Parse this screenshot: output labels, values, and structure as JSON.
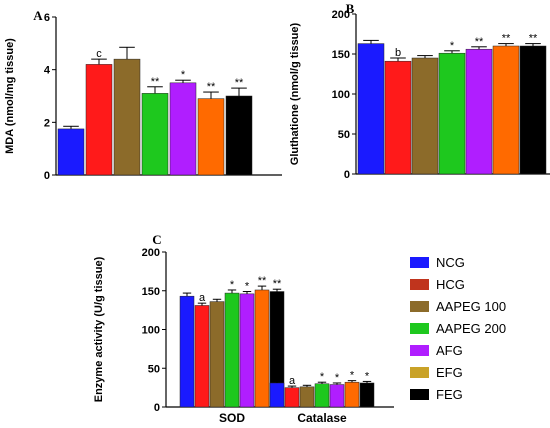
{
  "groups": [
    "NCG",
    "HCG",
    "AAPEG 100",
    "AAPEG 200",
    "AFG",
    "EFG",
    "FEG"
  ],
  "colors": {
    "NCG": "#1a1aff",
    "HCG": "#ff1a1a",
    "AAPEG 100": "#8c6b2a",
    "AAPEG 200": "#1ec81e",
    "AFG": "#b01eff",
    "EFG": "#ff6a00",
    "FEG": "#000000"
  },
  "legend": {
    "items": [
      {
        "label": "NCG",
        "color": "#1a1aff"
      },
      {
        "label": "HCG",
        "color": "#c0341d"
      },
      {
        "label": "AAPEG 100",
        "color": "#8c6b2a"
      },
      {
        "label": "AAPEG 200",
        "color": "#1ec81e"
      },
      {
        "label": "AFG",
        "color": "#b01eff"
      },
      {
        "label": "EFG",
        "color": "#c9a227"
      },
      {
        "label": "FEG",
        "color": "#000000"
      }
    ]
  },
  "chart_data": [
    {
      "panel": "A",
      "type": "bar",
      "title": "",
      "xlabel": "",
      "ylabel": "MDA (nmol/mg tissue)",
      "ylim": [
        0,
        6
      ],
      "yticks": [
        0,
        2,
        4,
        6
      ],
      "categories": [
        "NCG",
        "HCG",
        "AAPEG 100",
        "AAPEG 200",
        "AFG",
        "EFG",
        "FEG"
      ],
      "values": [
        1.75,
        4.2,
        4.4,
        3.1,
        3.5,
        2.9,
        3.0
      ],
      "errors": [
        0.1,
        0.2,
        0.45,
        0.25,
        0.1,
        0.25,
        0.3
      ],
      "annotations": [
        "",
        "c",
        "",
        "**",
        "*",
        "**",
        "**"
      ]
    },
    {
      "panel": "B",
      "type": "bar",
      "title": "",
      "xlabel": "",
      "ylabel": "Gluthatione (nmol/g tissue)",
      "ylim": [
        0,
        200
      ],
      "yticks": [
        0,
        50,
        100,
        150,
        200
      ],
      "categories": [
        "NCG",
        "HCG",
        "AAPEG 100",
        "AAPEG 200",
        "AFG",
        "EFG",
        "FEG"
      ],
      "values": [
        163,
        141,
        145,
        151,
        156,
        160,
        160
      ],
      "errors": [
        4,
        4,
        3,
        3,
        3,
        3,
        3
      ],
      "annotations": [
        "",
        "b",
        "",
        "*",
        "**",
        "**",
        "**"
      ]
    },
    {
      "panel": "C",
      "type": "bar",
      "title": "",
      "xlabel": "",
      "ylabel": "Enzyme activity (U/g tissue)",
      "ylim": [
        0,
        200
      ],
      "yticks": [
        0,
        50,
        100,
        150,
        200
      ],
      "categories": [
        "SOD",
        "Catalase"
      ],
      "series": [
        {
          "name": "NCG",
          "values": [
            143,
            31
          ],
          "errors": [
            4,
            3
          ],
          "annotations": [
            "",
            ""
          ]
        },
        {
          "name": "HCG",
          "values": [
            131,
            25
          ],
          "errors": [
            3,
            2
          ],
          "annotations": [
            "a",
            "a"
          ]
        },
        {
          "name": "AAPEG 100",
          "values": [
            136,
            26
          ],
          "errors": [
            3,
            2
          ],
          "annotations": [
            "",
            ""
          ]
        },
        {
          "name": "AAPEG 200",
          "values": [
            147,
            30
          ],
          "errors": [
            4,
            2
          ],
          "annotations": [
            "*",
            "*"
          ]
        },
        {
          "name": "AFG",
          "values": [
            146,
            29
          ],
          "errors": [
            3,
            2
          ],
          "annotations": [
            "*",
            "*"
          ]
        },
        {
          "name": "EFG",
          "values": [
            151,
            32
          ],
          "errors": [
            5,
            2
          ],
          "annotations": [
            "**",
            "*"
          ]
        },
        {
          "name": "FEG",
          "values": [
            149,
            31
          ],
          "errors": [
            3,
            2
          ],
          "annotations": [
            "**",
            "*"
          ]
        }
      ]
    }
  ]
}
